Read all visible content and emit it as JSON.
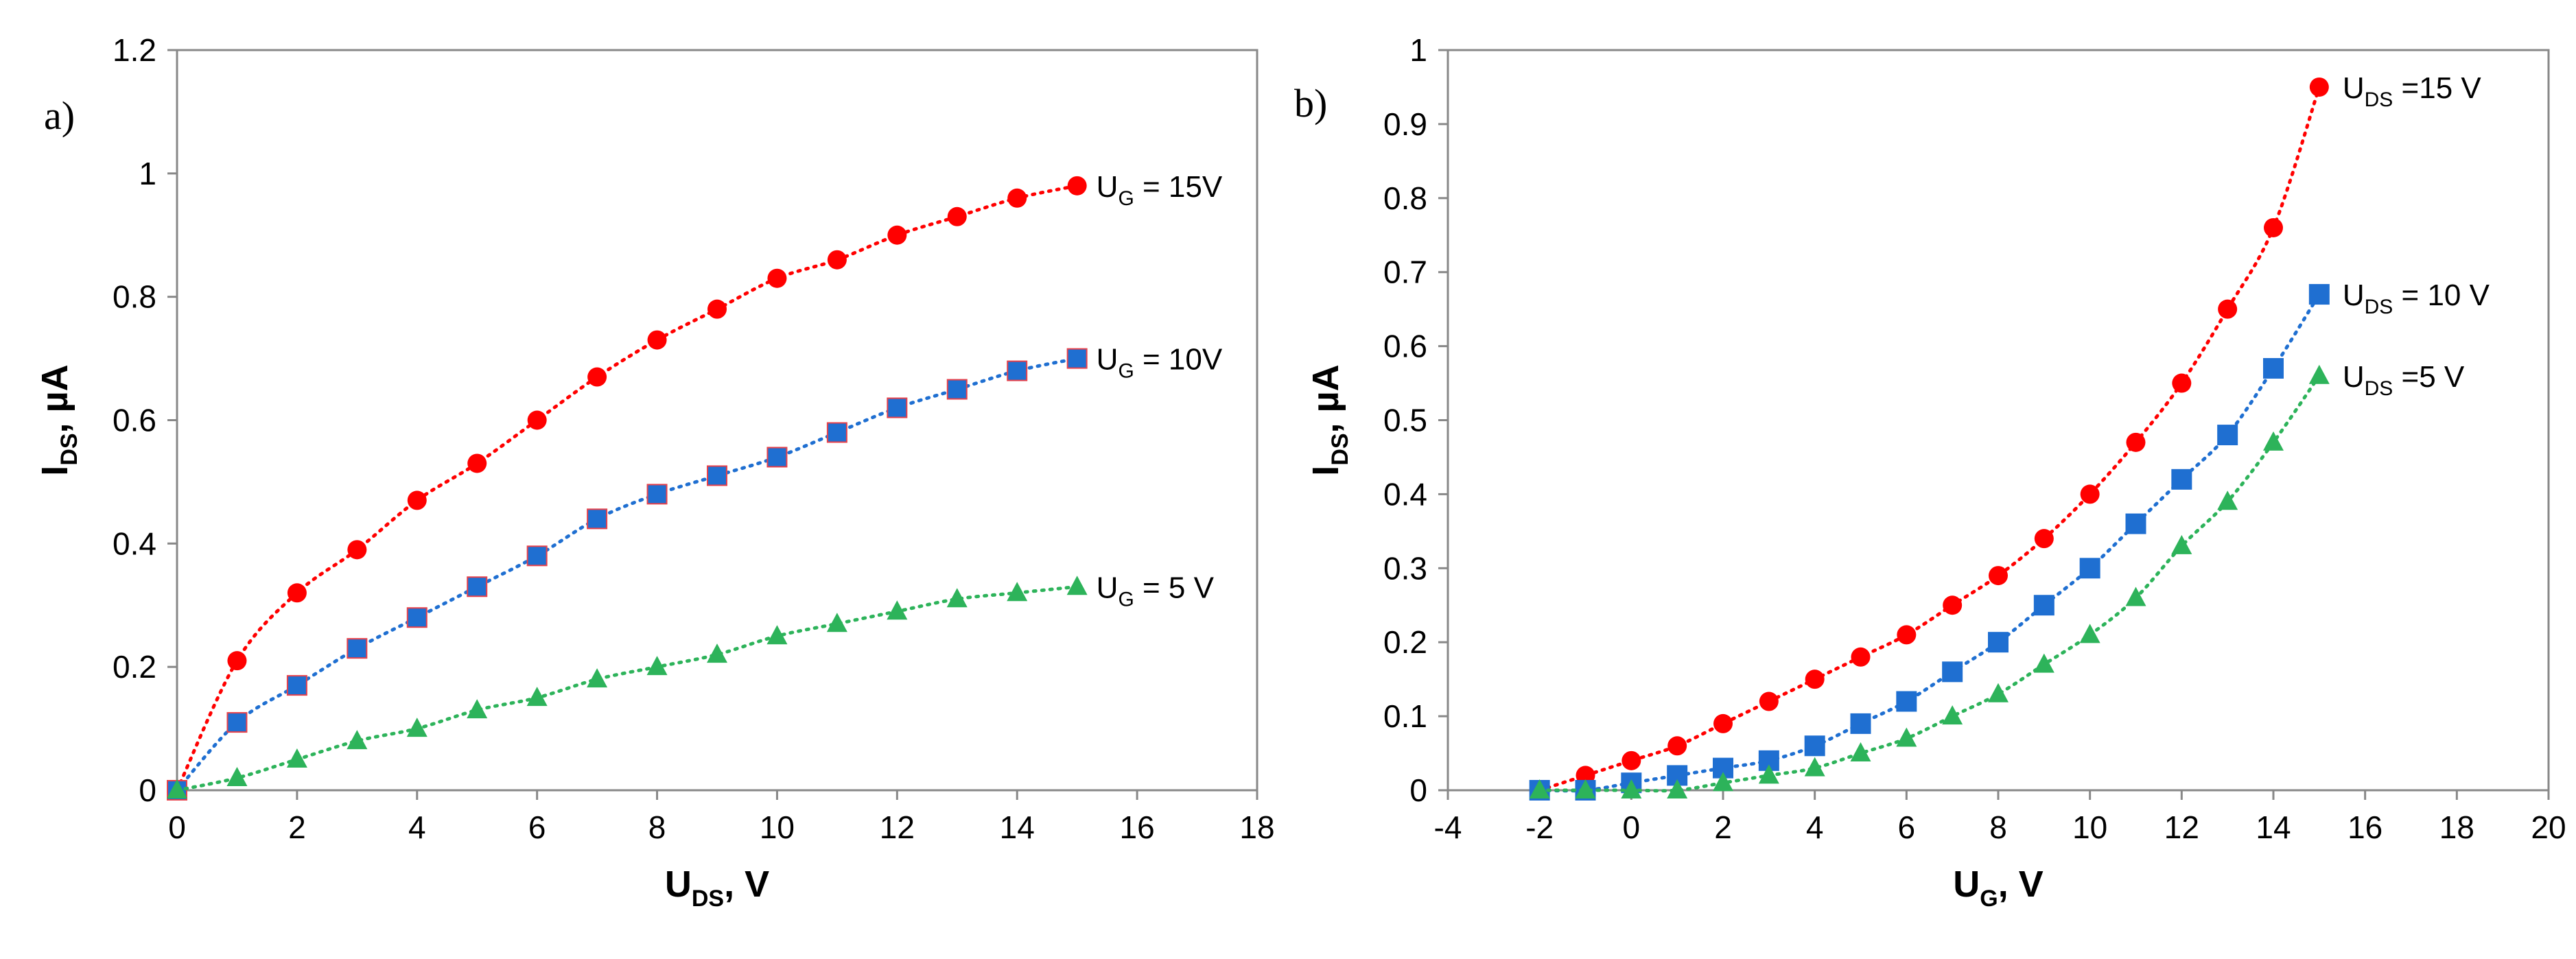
{
  "chart_data": [
    {
      "type": "scatter",
      "panel_label": "a)",
      "xlabel": "U_DS, V",
      "xlabel_parts": {
        "main": "U",
        "sub": "DS",
        "rest": ", V"
      },
      "ylabel": "I_DS, µA",
      "ylabel_parts": {
        "main": "I",
        "sub": "DS",
        "rest": ", µA"
      },
      "xlim": [
        0,
        18
      ],
      "ylim": [
        0,
        1.2
      ],
      "xticks": [
        0,
        2,
        4,
        6,
        8,
        10,
        12,
        14,
        16,
        18
      ],
      "yticks": [
        0,
        0.2,
        0.4,
        0.6,
        0.8,
        1,
        1.2
      ],
      "xtick_labels": [
        "0",
        "2",
        "4",
        "6",
        "8",
        "10",
        "12",
        "14",
        "16",
        "18"
      ],
      "ytick_labels": [
        "0",
        "0.2",
        "0.4",
        "0.6",
        "0.8",
        "1",
        "1.2"
      ],
      "grid": false,
      "series": [
        {
          "name": "U_G = 15V",
          "label_parts": {
            "main": "U",
            "sub": "G",
            "rest": " = 15V"
          },
          "color": "#ff0000",
          "marker": "circle",
          "x": [
            0,
            1,
            2,
            3,
            4,
            5,
            6,
            7,
            8,
            9,
            10,
            11,
            12,
            13,
            14,
            15
          ],
          "y": [
            0,
            0.21,
            0.32,
            0.39,
            0.47,
            0.53,
            0.6,
            0.67,
            0.73,
            0.78,
            0.83,
            0.86,
            0.9,
            0.93,
            0.96,
            0.98
          ]
        },
        {
          "name": "U_G = 10V",
          "label_parts": {
            "main": "U",
            "sub": "G",
            "rest": " = 10V"
          },
          "color": "#1f6fd1",
          "marker": "square",
          "x": [
            0,
            1,
            2,
            3,
            4,
            5,
            6,
            7,
            8,
            9,
            10,
            11,
            12,
            13,
            14,
            15
          ],
          "y": [
            0,
            0.11,
            0.17,
            0.23,
            0.28,
            0.33,
            0.38,
            0.44,
            0.48,
            0.51,
            0.54,
            0.58,
            0.62,
            0.65,
            0.68,
            0.7
          ]
        },
        {
          "name": "U_G = 5 V",
          "label_parts": {
            "main": "U",
            "sub": "G",
            "rest": " = 5 V"
          },
          "color": "#2db35a",
          "marker": "triangle",
          "x": [
            0,
            1,
            2,
            3,
            4,
            5,
            6,
            7,
            8,
            9,
            10,
            11,
            12,
            13,
            14,
            15
          ],
          "y": [
            0,
            0.02,
            0.05,
            0.08,
            0.1,
            0.13,
            0.15,
            0.18,
            0.2,
            0.22,
            0.25,
            0.27,
            0.29,
            0.31,
            0.32,
            0.33
          ]
        }
      ]
    },
    {
      "type": "scatter",
      "panel_label": "b)",
      "xlabel": "U_G, V",
      "xlabel_parts": {
        "main": "U",
        "sub": "G",
        "rest": ", V"
      },
      "ylabel": "I_DS, µA",
      "ylabel_parts": {
        "main": "I",
        "sub": "DS",
        "rest": ", µA"
      },
      "xlim": [
        -4,
        20
      ],
      "ylim": [
        0,
        1
      ],
      "xticks": [
        -4,
        -2,
        0,
        2,
        4,
        6,
        8,
        10,
        12,
        14,
        16,
        18,
        20
      ],
      "yticks": [
        0,
        0.1,
        0.2,
        0.3,
        0.4,
        0.5,
        0.6,
        0.7,
        0.8,
        0.9,
        1
      ],
      "xtick_labels": [
        "-4",
        "-2",
        "0",
        "2",
        "4",
        "6",
        "8",
        "10",
        "12",
        "14",
        "16",
        "18",
        "20"
      ],
      "ytick_labels": [
        "0",
        "0.1",
        "0.2",
        "0.3",
        "0.4",
        "0.5",
        "0.6",
        "0.7",
        "0.8",
        "0.9",
        "1"
      ],
      "grid": false,
      "series": [
        {
          "name": "U_DS =15 V",
          "label_parts": {
            "main": "U",
            "sub": "DS",
            "rest": " =15 V"
          },
          "color": "#ff0000",
          "marker": "circle",
          "x": [
            -2,
            -1,
            0,
            1,
            2,
            3,
            4,
            5,
            6,
            7,
            8,
            9,
            10,
            11,
            12,
            13,
            14,
            15
          ],
          "y": [
            0,
            0.02,
            0.04,
            0.06,
            0.09,
            0.12,
            0.15,
            0.18,
            0.21,
            0.25,
            0.29,
            0.34,
            0.4,
            0.47,
            0.55,
            0.65,
            0.76,
            0.95
          ]
        },
        {
          "name": "U_DS = 10 V",
          "label_parts": {
            "main": "U",
            "sub": "DS",
            "rest": " = 10 V"
          },
          "color": "#1f6fd1",
          "marker": "square",
          "x": [
            -2,
            -1,
            0,
            1,
            2,
            3,
            4,
            5,
            6,
            7,
            8,
            9,
            10,
            11,
            12,
            13,
            14,
            15
          ],
          "y": [
            0,
            0,
            0.01,
            0.02,
            0.03,
            0.04,
            0.06,
            0.09,
            0.12,
            0.16,
            0.2,
            0.25,
            0.3,
            0.36,
            0.42,
            0.48,
            0.57,
            0.67
          ]
        },
        {
          "name": "U_DS =5 V",
          "label_parts": {
            "main": "U",
            "sub": "DS",
            "rest": " =5 V"
          },
          "color": "#2db35a",
          "marker": "triangle",
          "x": [
            -2,
            -1,
            0,
            1,
            2,
            3,
            4,
            5,
            6,
            7,
            8,
            9,
            10,
            11,
            12,
            13,
            14,
            15
          ],
          "y": [
            0,
            0,
            0,
            0,
            0.01,
            0.02,
            0.03,
            0.05,
            0.07,
            0.1,
            0.13,
            0.17,
            0.21,
            0.26,
            0.33,
            0.39,
            0.47,
            0.56
          ]
        }
      ]
    }
  ]
}
